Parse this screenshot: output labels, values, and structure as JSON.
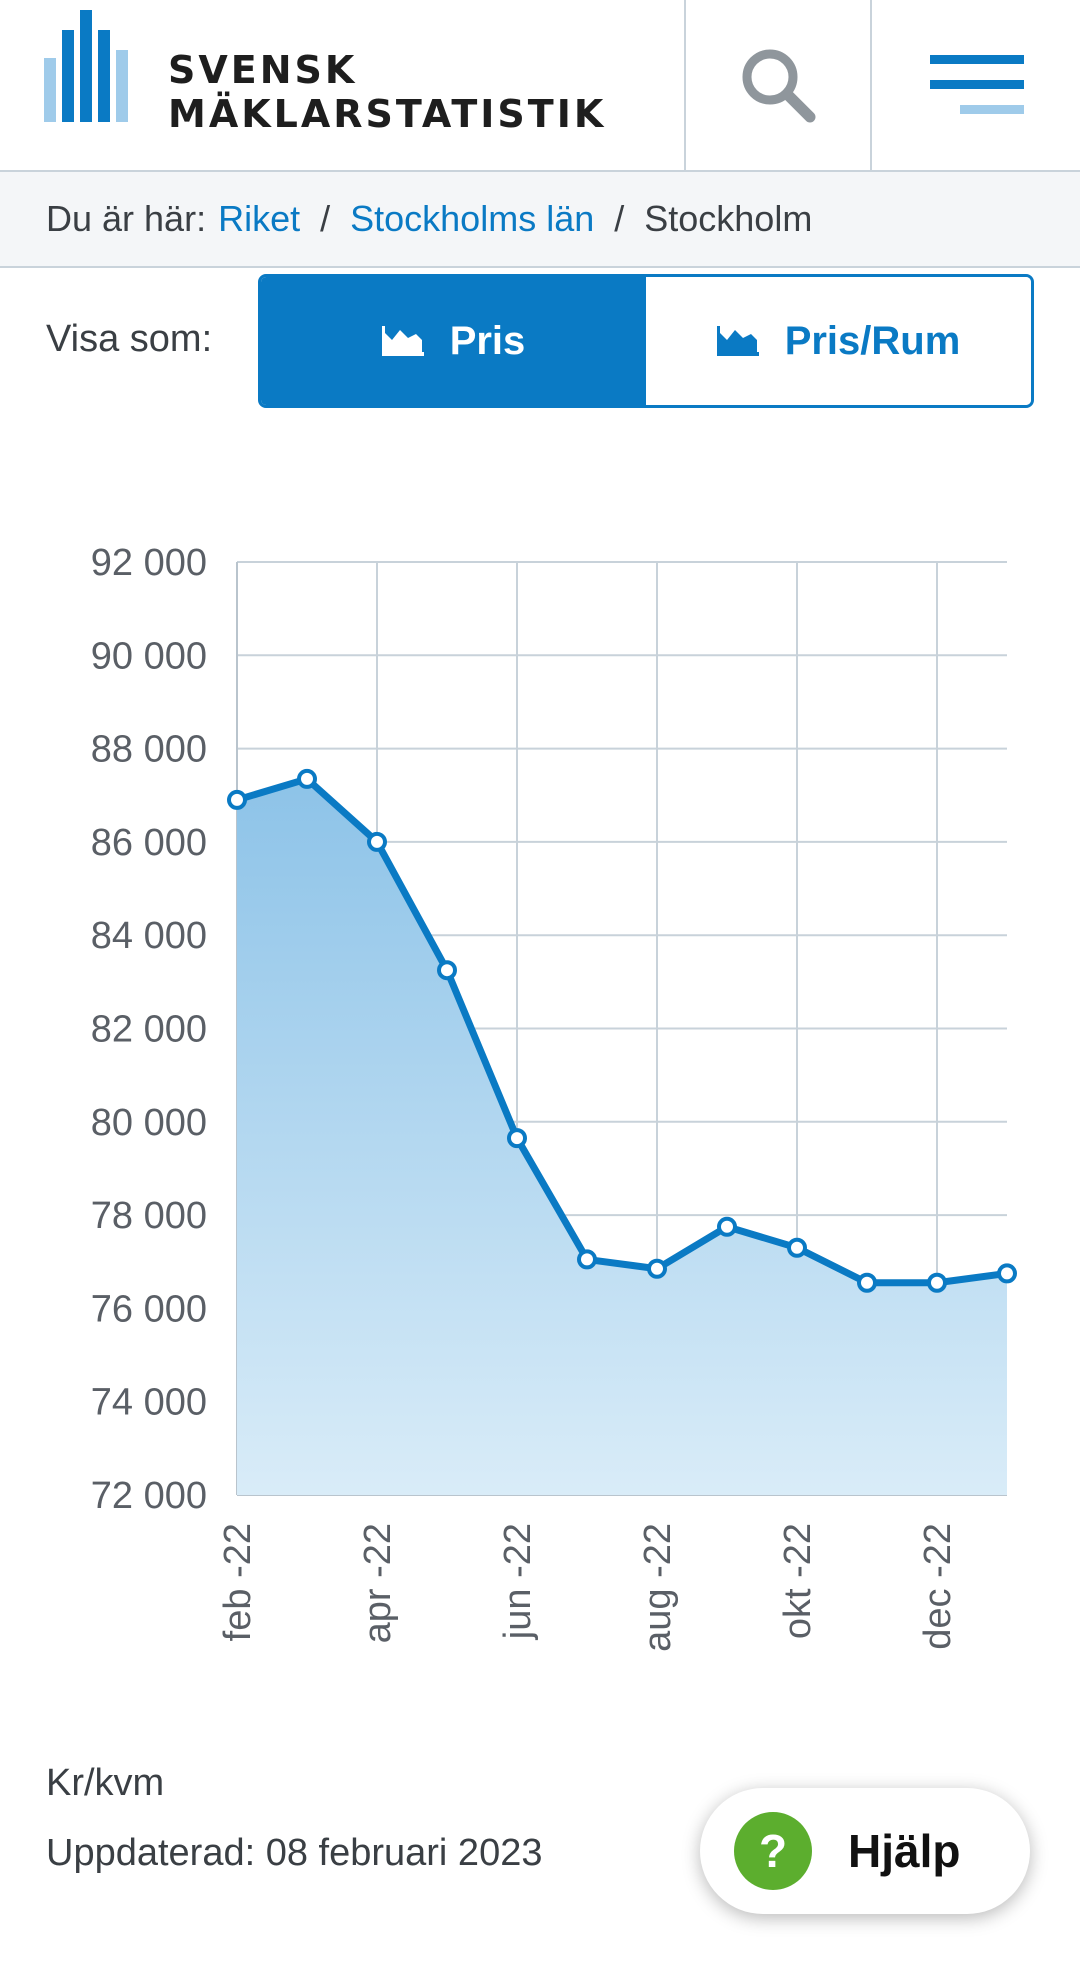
{
  "header": {
    "logo_line1": "SVENSK",
    "logo_line2": "MÄKLARSTATISTIK"
  },
  "breadcrumb": {
    "prefix": "Du är här:",
    "items": [
      "Riket",
      "Stockholms län",
      "Stockholm"
    ]
  },
  "view_toggle": {
    "label": "Visa som:",
    "options": [
      "Pris",
      "Pris/Rum"
    ],
    "selected": "Pris"
  },
  "colors": {
    "accent": "#0a7ac4",
    "help_green": "#5cae2e"
  },
  "chart_data": {
    "type": "area",
    "x": [
      "feb -22",
      "mar -22",
      "apr -22",
      "maj -22",
      "jun -22",
      "jul -22",
      "aug -22",
      "sep -22",
      "okt -22",
      "nov -22",
      "dec -22",
      "jan -23"
    ],
    "x_tick_labels": [
      "feb -22",
      "apr -22",
      "jun -22",
      "aug -22",
      "okt -22",
      "dec -22"
    ],
    "values": [
      86900,
      87350,
      86000,
      83250,
      79650,
      77050,
      76850,
      77750,
      77300,
      76550,
      76550,
      76750
    ],
    "ylim": [
      72000,
      92000
    ],
    "y_ticks": [
      92000,
      90000,
      88000,
      86000,
      84000,
      82000,
      80000,
      78000,
      76000,
      74000,
      72000
    ],
    "y_tick_labels": [
      "92 000",
      "90 000",
      "88 000",
      "86 000",
      "84 000",
      "82 000",
      "80 000",
      "78 000",
      "76 000",
      "74 000",
      "72 000"
    ],
    "grid": true,
    "color": "#0a7ac4"
  },
  "footer": {
    "unit": "Kr/kvm",
    "updated": "Uppdaterad: 08 februari 2023"
  },
  "help": {
    "icon_glyph": "?",
    "label": "Hjälp"
  }
}
